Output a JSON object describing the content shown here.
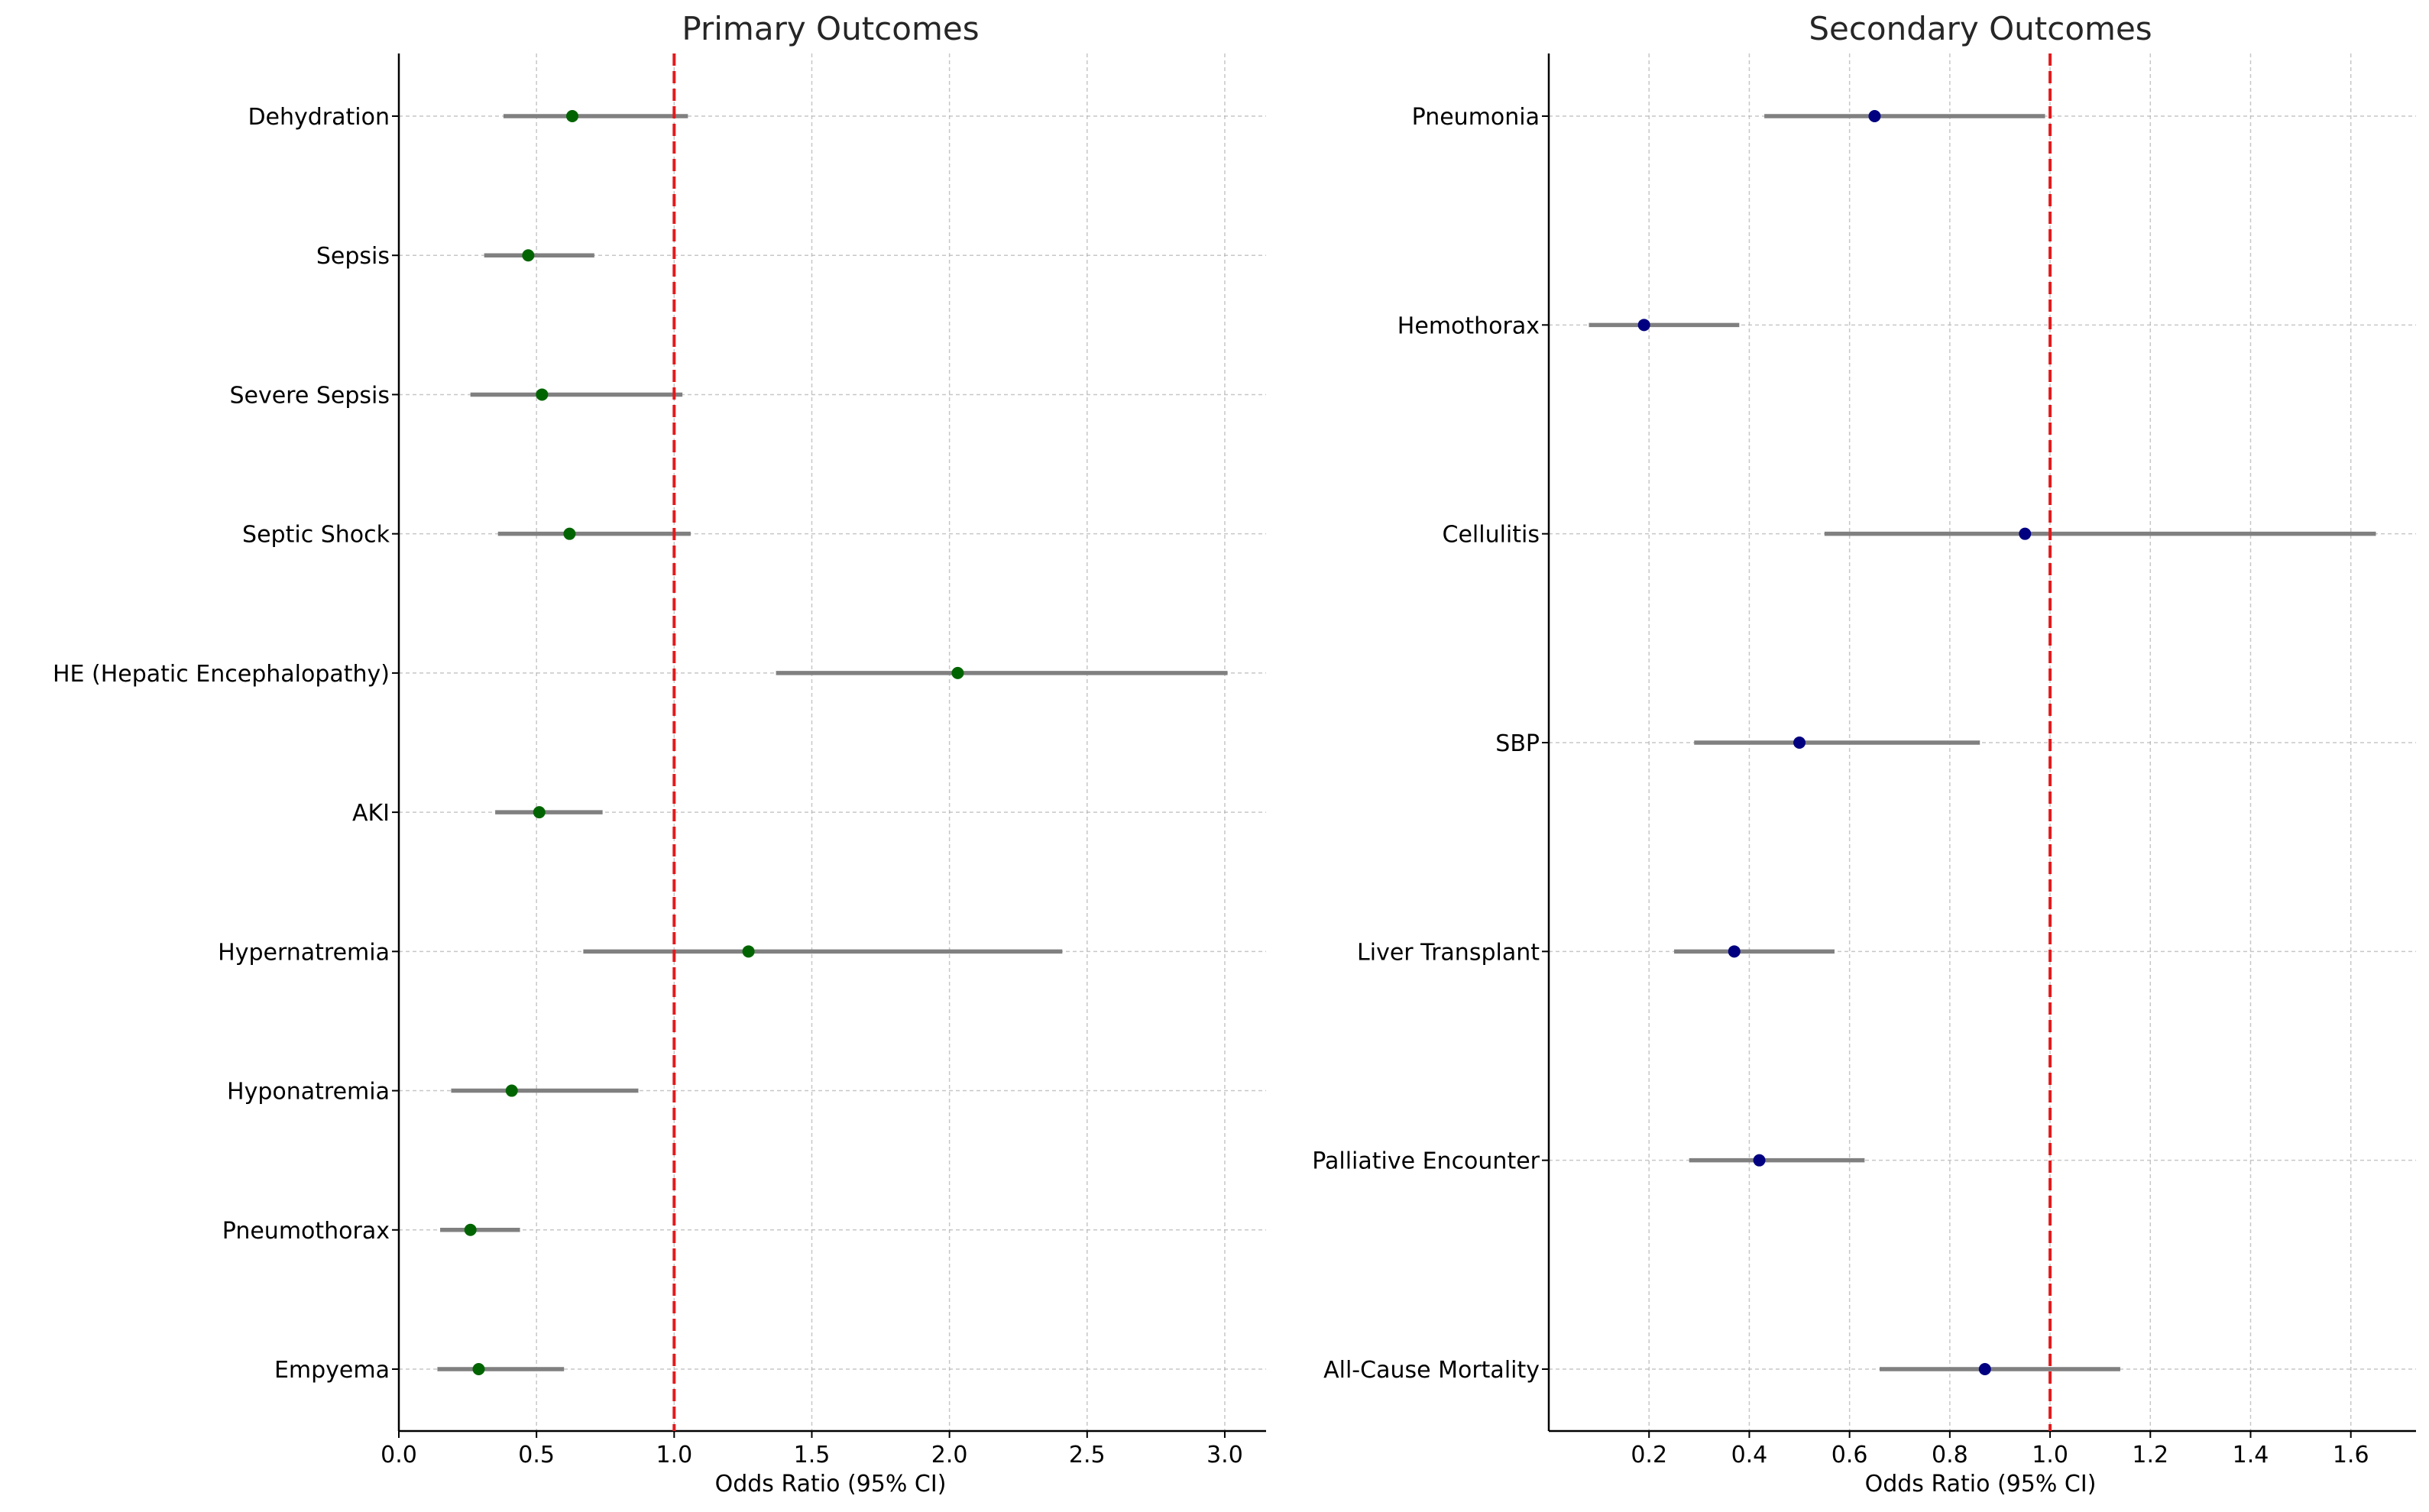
{
  "chart_data": [
    {
      "type": "scatter",
      "subtype": "forest-plot",
      "title": "Primary Outcomes",
      "xlabel": "Odds Ratio (95% CI)",
      "ylabel": "",
      "xlim": [
        0.0,
        3.15
      ],
      "xticks": [
        "0.0",
        "0.5",
        "1.0",
        "1.5",
        "2.0",
        "2.5",
        "3.0"
      ],
      "xtick_values": [
        0.0,
        0.5,
        1.0,
        1.5,
        2.0,
        2.5,
        3.0
      ],
      "reference_line": 1.0,
      "grid": true,
      "point_color": "#006400",
      "ci_color": "#808080",
      "reference_color": "#e41a1c",
      "categories": [
        "Dehydration",
        "Sepsis",
        "Severe Sepsis",
        "Septic Shock",
        "HE (Hepatic Encephalopathy)",
        "AKI",
        "Hypernatremia",
        "Hyponatremia",
        "Pneumothorax",
        "Empyema"
      ],
      "values": [
        0.63,
        0.47,
        0.52,
        0.62,
        2.03,
        0.51,
        1.27,
        0.41,
        0.26,
        0.29
      ],
      "ci_lower": [
        0.38,
        0.31,
        0.26,
        0.36,
        1.37,
        0.35,
        0.67,
        0.19,
        0.15,
        0.14
      ],
      "ci_upper": [
        1.05,
        0.71,
        1.03,
        1.06,
        3.01,
        0.74,
        2.41,
        0.87,
        0.44,
        0.6
      ]
    },
    {
      "type": "scatter",
      "subtype": "forest-plot",
      "title": "Secondary Outcomes",
      "xlabel": "Odds Ratio (95% CI)",
      "ylabel": "",
      "xlim": [
        0.0,
        1.73
      ],
      "xticks": [
        "0.2",
        "0.4",
        "0.6",
        "0.8",
        "1.0",
        "1.2",
        "1.4",
        "1.6"
      ],
      "xtick_values": [
        0.2,
        0.4,
        0.6,
        0.8,
        1.0,
        1.2,
        1.4,
        1.6
      ],
      "reference_line": 1.0,
      "grid": true,
      "point_color": "#000080",
      "ci_color": "#808080",
      "reference_color": "#e41a1c",
      "categories": [
        "Pneumonia",
        "Hemothorax",
        "Cellulitis",
        "SBP",
        "Liver Transplant",
        "Palliative Encounter",
        "All-Cause Mortality"
      ],
      "values": [
        0.65,
        0.19,
        0.95,
        0.5,
        0.37,
        0.42,
        0.87
      ],
      "ci_lower": [
        0.43,
        0.08,
        0.55,
        0.29,
        0.25,
        0.28,
        0.66
      ],
      "ci_upper": [
        0.99,
        0.38,
        1.65,
        0.86,
        0.57,
        0.63,
        1.14
      ]
    }
  ]
}
